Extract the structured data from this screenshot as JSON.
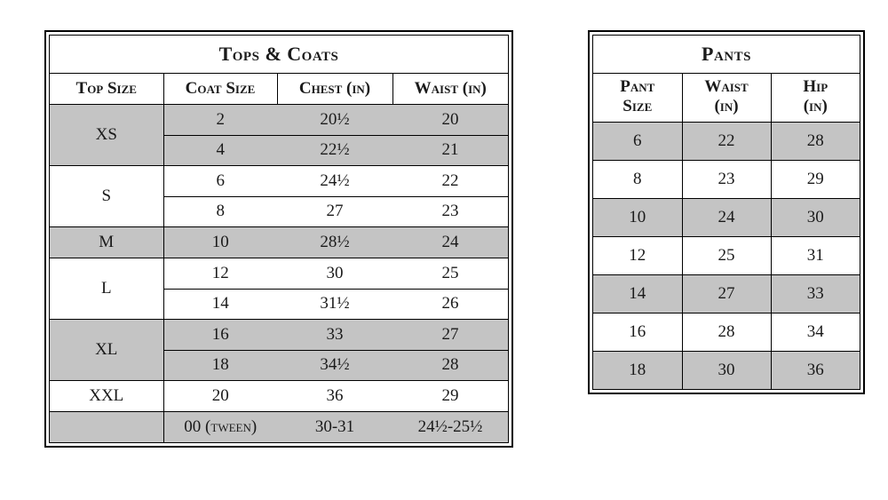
{
  "colors": {
    "band": "#c4c4c4",
    "border": "#000000",
    "bg": "#ffffff",
    "text": "#1a1a1a"
  },
  "tops": {
    "title": "Tops & Coats",
    "headers": [
      "Top Size",
      "Coat Size",
      "Chest (in)",
      "Waist (in)"
    ],
    "groups": [
      {
        "size": "XS",
        "band": true,
        "rows": [
          [
            "2",
            "20½",
            "20"
          ],
          [
            "4",
            "22½",
            "21"
          ]
        ]
      },
      {
        "size": "S",
        "band": false,
        "rows": [
          [
            "6",
            "24½",
            "22"
          ],
          [
            "8",
            "27",
            "23"
          ]
        ]
      },
      {
        "size": "M",
        "band": true,
        "rows": [
          [
            "10",
            "28½",
            "24"
          ]
        ]
      },
      {
        "size": "L",
        "band": false,
        "rows": [
          [
            "12",
            "30",
            "25"
          ],
          [
            "14",
            "31½",
            "26"
          ]
        ]
      },
      {
        "size": "XL",
        "band": true,
        "rows": [
          [
            "16",
            "33",
            "27"
          ],
          [
            "18",
            "34½",
            "28"
          ]
        ]
      },
      {
        "size": "XXL",
        "band": false,
        "rows": [
          [
            "20",
            "36",
            "29"
          ]
        ]
      },
      {
        "size": "",
        "band": true,
        "rows": [
          [
            "00 (tween)",
            "30-31",
            "24½-25½"
          ]
        ]
      }
    ]
  },
  "pants": {
    "title": "Pants",
    "headers": [
      {
        "l1": "Pant",
        "l2": "Size"
      },
      {
        "l1": "Waist",
        "l2": "(in)"
      },
      {
        "l1": "Hip",
        "l2": "(in)"
      }
    ],
    "rows": [
      {
        "band": true,
        "cells": [
          "6",
          "22",
          "28"
        ]
      },
      {
        "band": false,
        "cells": [
          "8",
          "23",
          "29"
        ]
      },
      {
        "band": true,
        "cells": [
          "10",
          "24",
          "30"
        ]
      },
      {
        "band": false,
        "cells": [
          "12",
          "25",
          "31"
        ]
      },
      {
        "band": true,
        "cells": [
          "14",
          "27",
          "33"
        ]
      },
      {
        "band": false,
        "cells": [
          "16",
          "28",
          "34"
        ]
      },
      {
        "band": true,
        "cells": [
          "18",
          "30",
          "36"
        ]
      }
    ]
  }
}
